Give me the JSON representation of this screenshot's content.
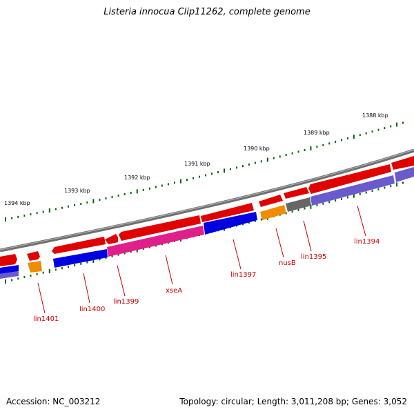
{
  "title": "Listeria innocua Clip11262, complete genome",
  "footer": {
    "accession": "Accession: NC_003212",
    "summary": "Topology: circular; Length: 3,011,208 bp; Genes: 3,052"
  },
  "ruler": {
    "labels": [
      "1388 kbp",
      "1389 kbp",
      "1390 kbp",
      "1391 kbp",
      "1392 kbp",
      "1393 kbp",
      "1394 kbp"
    ]
  },
  "gene_labels": [
    "lin1394",
    "lin1395",
    "nusB",
    "lin1397",
    "xseA",
    "lin1399",
    "lin1400",
    "lin1401"
  ],
  "colors": {
    "backbone": "#7a7a7a",
    "forward_feature": "#e00000",
    "cds_blue": "#0000e0",
    "cds_magenta": "#e0208a",
    "cds_orange": "#f08c00",
    "cds_gray": "#666666",
    "cds_slate": "#6a5acd",
    "tick": "#006400",
    "label": "#cc0000"
  }
}
